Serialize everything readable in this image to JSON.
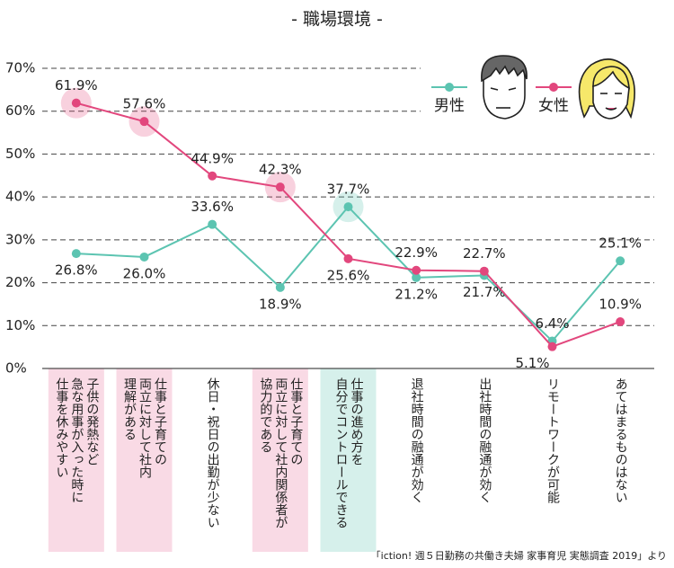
{
  "chart_data": {
    "type": "line",
    "title": "- 職場環境 -",
    "categories": [
      "子供の発熱など\n急な用事が入った時に\n仕事を休みやすい",
      "仕事と子育ての\n両立に対して社内\n理解がある",
      "休日・祝日の出勤が少ない",
      "仕事と子育ての\n両立に対して社内関係者が\n協力的である",
      "仕事の進め方を\n自分でコントロールできる",
      "退社時間の融通が効く",
      "出社時間の融通が効く",
      "リモートワークが可能",
      "あてはまるものはない"
    ],
    "series": [
      {
        "name": "男性",
        "color": "#5cc4b1",
        "values": [
          26.8,
          26.0,
          33.6,
          18.9,
          37.7,
          21.2,
          21.7,
          6.4,
          25.1
        ],
        "value_labels": [
          "26.8%",
          "26.0%",
          "33.6%",
          "18.9%",
          "37.7%",
          "21.2%",
          "21.7%",
          "6.4%",
          "25.1%"
        ]
      },
      {
        "name": "女性",
        "color": "#e2477d",
        "values": [
          61.9,
          57.6,
          44.9,
          42.3,
          25.6,
          22.9,
          22.7,
          5.1,
          10.9
        ],
        "value_labels": [
          "61.9%",
          "57.6%",
          "44.9%",
          "42.3%",
          "25.6%",
          "22.9%",
          "22.7%",
          "5.1%",
          "10.9%"
        ]
      }
    ],
    "highlight_series": [
      1,
      1,
      null,
      1,
      0,
      null,
      null,
      null,
      null
    ],
    "ylim": [
      0,
      70
    ],
    "yticks": [
      {
        "value": 0,
        "label": "0%"
      },
      {
        "value": 10,
        "label": "10%"
      },
      {
        "value": 20,
        "label": "20%"
      },
      {
        "value": 30,
        "label": "30%"
      },
      {
        "value": 40,
        "label": "40%"
      },
      {
        "value": 50,
        "label": "50%"
      },
      {
        "value": 60,
        "label": "60%"
      },
      {
        "value": 70,
        "label": "70%"
      }
    ],
    "grid": true,
    "source": "「iction! 週５日勤務の共働き夫婦 家事育児 実態調査 2019」より"
  }
}
